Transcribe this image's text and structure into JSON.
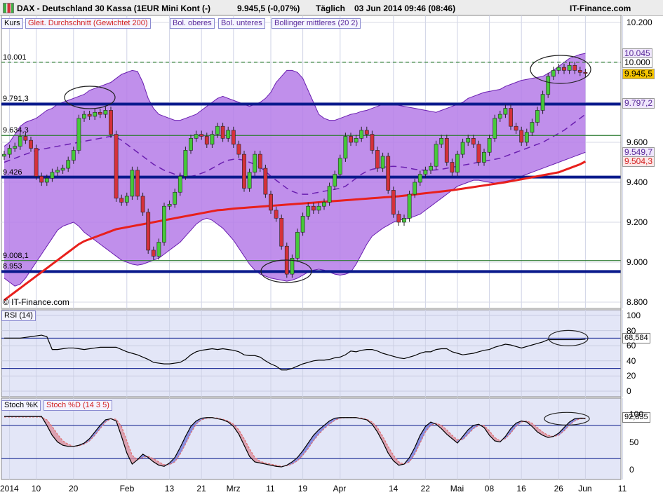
{
  "header": {
    "logo_icon": "bar-chart-icon",
    "title": "DAX - Deutschland 30 Kassa (1EUR Mini Kont (-)",
    "quote": "9.945,5 (-0,07%)",
    "period": "Täglich",
    "datetime": "03 Jun 2014 09:46 (08:46)",
    "brand": "IT-Finance.com"
  },
  "main_legend": {
    "kurs": "Kurs",
    "sma": "Gleit. Durchschnitt (Gewichtet 200)",
    "bol_upper": "Bol. oberes",
    "bol_lower": "Bol. unteres",
    "bol_mid": "Bollinger mittleres (20 2)",
    "watermark": "© IT-Finance.com"
  },
  "rsi_legend": "RSI (14)",
  "stoch_legend": {
    "k": "Stoch %K",
    "d": "Stoch %D (14 3 5)"
  },
  "levels": [
    {
      "label": "10.001",
      "value": 10001,
      "color": "#2e7d32",
      "style": "dashed"
    },
    {
      "label": "9.791,3",
      "value": 9791.3,
      "color": "#0a1a8c",
      "style": "thick"
    },
    {
      "label": "9.634,3",
      "value": 9634.3,
      "color": "#2e7d32",
      "style": "thin"
    },
    {
      "label": "9.426",
      "value": 9426,
      "color": "#0a1a8c",
      "style": "thick"
    },
    {
      "label": "9.008,1",
      "value": 9008.1,
      "color": "#2e7d32",
      "style": "thin"
    },
    {
      "label": "8.953",
      "value": 8953,
      "color": "#0a1a8c",
      "style": "thick"
    }
  ],
  "right_tags": [
    {
      "label": "10.045",
      "value": 10045,
      "color": "#5a2a9a",
      "bg": "#efe6fb"
    },
    {
      "label": "10.000",
      "value": 10000,
      "color": "#000000",
      "bg": "#ffffff"
    },
    {
      "label": "9.945,5",
      "value": 9945.5,
      "color": "#000000",
      "bg": "#f4c400"
    },
    {
      "label": "9.797,2",
      "value": 9797.2,
      "color": "#5a2a9a",
      "bg": "#efe6fb"
    },
    {
      "label": "9.549,7",
      "value": 9549.7,
      "color": "#5a2a9a",
      "bg": "#efe6fb"
    },
    {
      "label": "9.504,3",
      "value": 9504.3,
      "color": "#d32020",
      "bg": "#fbe6e6"
    }
  ],
  "rsi_current": "68,584",
  "stoch_current": "92,835",
  "colors": {
    "up": "#46c93a",
    "down": "#d5313a",
    "band_fill": "#b57be8",
    "band_line": "#6a1fb0",
    "sma": "#e8201c",
    "support": "#0a1a8c",
    "green_level": "#2e7d32",
    "panel_bg": "#e3e6f7",
    "current_price": "#f4c400"
  },
  "chart_data": [
    {
      "type": "candlestick",
      "title": "DAX - Deutschland 30 Kassa (1EUR Mini Kont (-)",
      "ylim": [
        8800,
        10200
      ],
      "y_ticks": [
        "10.200",
        "10.000",
        "9.800",
        "9.600",
        "9.400",
        "9.200",
        "9.000",
        "8.800"
      ],
      "y_tick_values": [
        10200,
        10000,
        9800,
        9600,
        9400,
        9200,
        9000,
        8800
      ],
      "x_ticks": [
        "2014",
        "10",
        "20",
        "Feb",
        "13",
        "21",
        "Mrz",
        "11",
        "19",
        "Apr",
        "14",
        "22",
        "Mai",
        "08",
        "16",
        "26",
        "Jun",
        "11"
      ],
      "x_tick_index": [
        1,
        6,
        13,
        23,
        31,
        37,
        43,
        50,
        56,
        63,
        73,
        79,
        85,
        91,
        97,
        104,
        109,
        116
      ],
      "closes": [
        9540,
        9570,
        9580,
        9630,
        9610,
        9570,
        9430,
        9400,
        9420,
        9450,
        9460,
        9470,
        9510,
        9560,
        9720,
        9740,
        9730,
        9750,
        9740,
        9760,
        9640,
        9320,
        9300,
        9330,
        9460,
        9330,
        9250,
        9060,
        9030,
        9100,
        9280,
        9290,
        9350,
        9430,
        9560,
        9620,
        9640,
        9630,
        9590,
        9640,
        9680,
        9620,
        9660,
        9590,
        9540,
        9370,
        9450,
        9540,
        9470,
        9340,
        9260,
        9220,
        9080,
        8940,
        9020,
        9150,
        9230,
        9280,
        9260,
        9280,
        9300,
        9380,
        9440,
        9520,
        9630,
        9600,
        9620,
        9660,
        9640,
        9560,
        9470,
        9530,
        9360,
        9240,
        9200,
        9220,
        9340,
        9400,
        9440,
        9460,
        9480,
        9590,
        9620,
        9500,
        9450,
        9540,
        9600,
        9620,
        9590,
        9500,
        9550,
        9620,
        9720,
        9740,
        9770,
        9680,
        9660,
        9600,
        9650,
        9700,
        9760,
        9840,
        9930,
        9960,
        9975,
        9960,
        9985,
        9960,
        9950,
        9945
      ],
      "opens": [
        9530,
        9540,
        9570,
        9580,
        9630,
        9610,
        9570,
        9430,
        9400,
        9420,
        9450,
        9460,
        9470,
        9510,
        9560,
        9720,
        9740,
        9730,
        9750,
        9740,
        9760,
        9640,
        9320,
        9300,
        9330,
        9460,
        9330,
        9250,
        9060,
        9030,
        9100,
        9280,
        9290,
        9350,
        9430,
        9560,
        9620,
        9640,
        9630,
        9590,
        9640,
        9680,
        9620,
        9660,
        9590,
        9540,
        9370,
        9450,
        9540,
        9470,
        9340,
        9260,
        9220,
        9080,
        8940,
        9020,
        9150,
        9230,
        9280,
        9260,
        9280,
        9300,
        9380,
        9440,
        9520,
        9630,
        9600,
        9620,
        9660,
        9640,
        9560,
        9470,
        9530,
        9360,
        9240,
        9200,
        9220,
        9340,
        9400,
        9440,
        9460,
        9480,
        9590,
        9620,
        9500,
        9450,
        9540,
        9600,
        9620,
        9590,
        9500,
        9550,
        9620,
        9720,
        9740,
        9770,
        9680,
        9660,
        9600,
        9650,
        9700,
        9760,
        9840,
        9930,
        9960,
        9975,
        9960,
        9985,
        9960,
        9950
      ],
      "sma_200": [
        8810,
        8830,
        8850,
        8870,
        8890,
        8910,
        8930,
        8950,
        8970,
        8990,
        9010,
        9030,
        9050,
        9070,
        9090,
        9105,
        9115,
        9125,
        9135,
        9145,
        9155,
        9165,
        9170,
        9175,
        9180,
        9185,
        9190,
        9195,
        9200,
        9205,
        9210,
        9215,
        9220,
        9225,
        9230,
        9235,
        9240,
        9245,
        9250,
        9255,
        9260,
        9262,
        9265,
        9268,
        9270,
        9272,
        9274,
        9276,
        9278,
        9280,
        9282,
        9284,
        9286,
        9288,
        9290,
        9292,
        9294,
        9296,
        9298,
        9300,
        9302,
        9304,
        9306,
        9308,
        9310,
        9312,
        9314,
        9316,
        9318,
        9320,
        9322,
        9324,
        9326,
        9328,
        9330,
        9333,
        9336,
        9339,
        9342,
        9345,
        9348,
        9351,
        9354,
        9357,
        9360,
        9364,
        9368,
        9372,
        9376,
        9380,
        9384,
        9388,
        9392,
        9396,
        9400,
        9405,
        9410,
        9415,
        9420,
        9425,
        9430,
        9435,
        9440,
        9445,
        9450,
        9460,
        9470,
        9480,
        9490,
        9504
      ],
      "bollinger_upper": [
        9580,
        9600,
        9640,
        9680,
        9700,
        9710,
        9720,
        9740,
        9760,
        9770,
        9790,
        9800,
        9810,
        9820,
        9830,
        9840,
        9860,
        9870,
        9880,
        9890,
        9900,
        9920,
        9940,
        9950,
        9960,
        9955,
        9900,
        9820,
        9770,
        9740,
        9730,
        9720,
        9710,
        9710,
        9720,
        9730,
        9740,
        9760,
        9780,
        9800,
        9820,
        9830,
        9820,
        9810,
        9800,
        9790,
        9780,
        9790,
        9800,
        9820,
        9850,
        9900,
        9930,
        9960,
        9960,
        9950,
        9920,
        9860,
        9800,
        9740,
        9720,
        9710,
        9710,
        9720,
        9730,
        9740,
        9745,
        9755,
        9760,
        9770,
        9780,
        9790,
        9790,
        9790,
        9785,
        9780,
        9775,
        9770,
        9765,
        9760,
        9755,
        9750,
        9760,
        9770,
        9780,
        9790,
        9800,
        9820,
        9830,
        9840,
        9850,
        9855,
        9860,
        9865,
        9880,
        9890,
        9900,
        9910,
        9915,
        9920,
        9925,
        9930,
        9945,
        9960,
        9980,
        10000,
        10020,
        10030,
        10040,
        10045
      ],
      "bollinger_lower": [
        8920,
        8900,
        8880,
        8890,
        8920,
        8960,
        9000,
        9040,
        9080,
        9120,
        9160,
        9180,
        9190,
        9200,
        9180,
        9150,
        9130,
        9110,
        9090,
        9070,
        9050,
        9030,
        9010,
        9000,
        8990,
        8985,
        8990,
        9000,
        9010,
        9020,
        9040,
        9060,
        9080,
        9100,
        9130,
        9160,
        9190,
        9210,
        9220,
        9210,
        9190,
        9170,
        9140,
        9110,
        9070,
        9030,
        8990,
        8960,
        8940,
        8930,
        8920,
        8915,
        8910,
        8905,
        8910,
        8920,
        8935,
        8950,
        8960,
        8965,
        8960,
        8950,
        8940,
        8935,
        8940,
        8950,
        8990,
        9040,
        9090,
        9130,
        9150,
        9170,
        9185,
        9200,
        9210,
        9215,
        9220,
        9230,
        9240,
        9260,
        9280,
        9300,
        9320,
        9340,
        9360,
        9380,
        9390,
        9400,
        9410,
        9410,
        9405,
        9400,
        9395,
        9400,
        9405,
        9410,
        9420,
        9430,
        9440,
        9450,
        9460,
        9470,
        9480,
        9490,
        9500,
        9510,
        9520,
        9530,
        9540,
        9550
      ],
      "bollinger_mid": [
        9500,
        9510,
        9520,
        9530,
        9540,
        9550,
        9560,
        9565,
        9570,
        9575,
        9580,
        9585,
        9590,
        9595,
        9600,
        9605,
        9610,
        9615,
        9620,
        9625,
        9630,
        9625,
        9610,
        9590,
        9570,
        9550,
        9530,
        9510,
        9490,
        9475,
        9460,
        9450,
        9440,
        9435,
        9430,
        9430,
        9435,
        9445,
        9455,
        9470,
        9485,
        9500,
        9510,
        9515,
        9515,
        9510,
        9500,
        9490,
        9475,
        9455,
        9430,
        9410,
        9390,
        9370,
        9355,
        9345,
        9340,
        9340,
        9345,
        9350,
        9355,
        9360,
        9365,
        9370,
        9380,
        9400,
        9420,
        9440,
        9455,
        9465,
        9470,
        9475,
        9478,
        9480,
        9478,
        9475,
        9470,
        9465,
        9462,
        9460,
        9460,
        9462,
        9465,
        9470,
        9475,
        9480,
        9485,
        9490,
        9495,
        9500,
        9505,
        9510,
        9515,
        9520,
        9530,
        9540,
        9550,
        9560,
        9570,
        9580,
        9590,
        9600,
        9615,
        9630,
        9645,
        9660,
        9680,
        9700,
        9720,
        9740
      ]
    },
    {
      "type": "line",
      "title": "RSI (14)",
      "ylim": [
        0,
        100
      ],
      "y_ticks": [
        "100",
        "80",
        "60",
        "40",
        "20",
        "0"
      ],
      "y_tick_values": [
        100,
        80,
        60,
        40,
        20,
        0
      ],
      "reference_lines": [
        70,
        30
      ],
      "series": [
        {
          "name": "RSI (14)",
          "color": "#000000",
          "values": [
            70,
            70,
            70,
            70,
            71,
            72,
            73,
            74,
            72,
            55,
            55,
            56,
            57,
            57,
            56,
            55,
            56,
            57,
            58,
            58,
            58,
            58,
            55,
            52,
            50,
            48,
            45,
            42,
            38,
            37,
            36,
            36,
            37,
            38,
            42,
            48,
            52,
            54,
            55,
            56,
            55,
            56,
            55,
            54,
            52,
            48,
            47,
            47,
            45,
            40,
            36,
            33,
            28,
            28,
            30,
            33,
            36,
            38,
            40,
            41,
            41,
            42,
            44,
            45,
            48,
            53,
            52,
            54,
            55,
            55,
            53,
            50,
            48,
            46,
            44,
            43,
            45,
            47,
            50,
            52,
            52,
            55,
            56,
            56,
            52,
            50,
            48,
            49,
            50,
            52,
            54,
            55,
            58,
            60,
            62,
            61,
            59,
            57,
            59,
            61,
            63,
            65,
            68,
            68,
            68,
            68,
            68,
            68,
            68,
            68.584
          ]
        }
      ]
    },
    {
      "type": "line",
      "title": "Stoch %K / Stoch %D (14 3 5)",
      "ylim": [
        -10,
        105
      ],
      "y_ticks": [
        "100",
        "50",
        "0"
      ],
      "y_tick_values": [
        100,
        50,
        0
      ],
      "reference_lines": [
        80,
        20
      ],
      "series": [
        {
          "name": "Stoch %K",
          "color": "#000000",
          "values": [
            96,
            96,
            96,
            96,
            96,
            96,
            96,
            96,
            80,
            62,
            50,
            44,
            42,
            42,
            44,
            48,
            56,
            68,
            80,
            90,
            92,
            88,
            60,
            30,
            10,
            18,
            28,
            22,
            14,
            8,
            6,
            12,
            22,
            40,
            60,
            78,
            88,
            93,
            94,
            94,
            92,
            90,
            86,
            78,
            64,
            44,
            24,
            14,
            12,
            10,
            8,
            6,
            5,
            8,
            14,
            22,
            34,
            48,
            62,
            72,
            80,
            88,
            93,
            94,
            94,
            94,
            94,
            92,
            90,
            82,
            68,
            50,
            30,
            16,
            8,
            10,
            22,
            40,
            62,
            78,
            86,
            82,
            74,
            64,
            56,
            48,
            60,
            72,
            80,
            82,
            76,
            62,
            52,
            50,
            60,
            74,
            84,
            88,
            86,
            78,
            68,
            62,
            58,
            60,
            66,
            76,
            86,
            92,
            93,
            92.835
          ]
        },
        {
          "name": "Stoch %D (14 3 5)",
          "color": "#e08080",
          "values": [
            95,
            95,
            95,
            95,
            95,
            95,
            95,
            95,
            90,
            78,
            64,
            52,
            46,
            42,
            43,
            46,
            52,
            62,
            74,
            86,
            92,
            91,
            78,
            52,
            26,
            18,
            22,
            24,
            20,
            14,
            9,
            9,
            14,
            28,
            46,
            66,
            82,
            90,
            93,
            94,
            93,
            91,
            88,
            82,
            72,
            56,
            38,
            22,
            15,
            12,
            10,
            8,
            6,
            7,
            10,
            16,
            26,
            38,
            52,
            64,
            74,
            82,
            89,
            93,
            94,
            94,
            94,
            93,
            91,
            86,
            76,
            60,
            42,
            26,
            14,
            10,
            14,
            28,
            48,
            68,
            80,
            84,
            80,
            72,
            62,
            54,
            54,
            64,
            74,
            80,
            80,
            70,
            58,
            52,
            56,
            66,
            78,
            86,
            88,
            84,
            76,
            68,
            62,
            60,
            62,
            70,
            80,
            88,
            92,
            92
          ]
        }
      ]
    }
  ]
}
